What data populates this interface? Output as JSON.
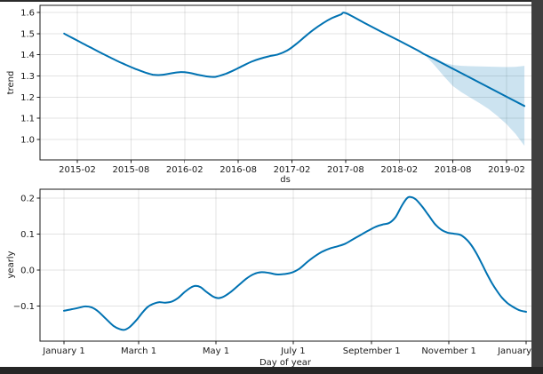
{
  "window": {
    "frame_colors": {
      "top": "#2b2b2b",
      "right": "#3f3f3f",
      "bottom": "#262626"
    },
    "background": "#ffffff"
  },
  "chart_data": [
    {
      "type": "line",
      "title": "",
      "xlabel": "ds",
      "ylabel": "trend",
      "grid": true,
      "line_color": "#0072B2",
      "band_color": "#0072B2",
      "band_opacity": 0.2,
      "grid_color": "#808080",
      "grid_opacity": 0.22,
      "spine_color": "#1a1a1a",
      "x_tick_labels": [
        "2015-02",
        "2015-08",
        "2016-02",
        "2016-08",
        "2017-02",
        "2017-08",
        "2018-02",
        "2018-08",
        "2019-02"
      ],
      "y_tick_labels": [
        "1.0",
        "1.1",
        "1.2",
        "1.3",
        "1.4",
        "1.5",
        "1.6"
      ],
      "ylim": [
        0.9,
        1.64
      ],
      "xlim": [
        "2014-09-28",
        "2019-06-28"
      ],
      "series": [
        {
          "name": "trend",
          "points": [
            [
              "2014-12-17",
              1.5
            ],
            [
              "2015-01-15",
              1.479
            ],
            [
              "2015-02-15",
              1.457
            ],
            [
              "2015-03-15",
              1.435
            ],
            [
              "2015-04-15",
              1.413
            ],
            [
              "2015-05-15",
              1.392
            ],
            [
              "2015-06-15",
              1.371
            ],
            [
              "2015-07-15",
              1.352
            ],
            [
              "2015-08-15",
              1.334
            ],
            [
              "2015-09-15",
              1.318
            ],
            [
              "2015-10-01",
              1.311
            ],
            [
              "2015-10-15",
              1.306
            ],
            [
              "2015-11-01",
              1.304
            ],
            [
              "2015-11-15",
              1.305
            ],
            [
              "2015-12-15",
              1.312
            ],
            [
              "2016-01-15",
              1.318
            ],
            [
              "2016-02-15",
              1.315
            ],
            [
              "2016-03-15",
              1.306
            ],
            [
              "2016-04-15",
              1.298
            ],
            [
              "2016-05-01",
              1.296
            ],
            [
              "2016-05-15",
              1.296
            ],
            [
              "2016-06-15",
              1.308
            ],
            [
              "2016-07-15",
              1.326
            ],
            [
              "2016-08-15",
              1.347
            ],
            [
              "2016-09-15",
              1.367
            ],
            [
              "2016-10-15",
              1.382
            ],
            [
              "2016-11-15",
              1.393
            ],
            [
              "2016-12-15",
              1.402
            ],
            [
              "2017-01-15",
              1.42
            ],
            [
              "2017-02-15",
              1.45
            ],
            [
              "2017-03-15",
              1.486
            ],
            [
              "2017-04-15",
              1.52
            ],
            [
              "2017-05-15",
              1.549
            ],
            [
              "2017-06-15",
              1.573
            ],
            [
              "2017-07-15",
              1.59
            ],
            [
              "2017-08-01",
              1.597
            ],
            [
              "2017-10-01",
              1.553
            ],
            [
              "2017-12-01",
              1.509
            ],
            [
              "2018-02-01",
              1.466
            ],
            [
              "2018-04-01",
              1.422
            ],
            [
              "2018-04-25",
              1.403
            ],
            [
              "2018-06-01",
              1.378
            ],
            [
              "2018-08-01",
              1.334
            ],
            [
              "2018-10-01",
              1.29
            ],
            [
              "2018-12-01",
              1.246
            ],
            [
              "2019-02-01",
              1.202
            ],
            [
              "2019-04-01",
              1.158
            ]
          ]
        }
      ],
      "uncertainty_band": {
        "upper": [
          [
            "2018-04-25",
            1.403
          ],
          [
            "2018-06-01",
            1.385
          ],
          [
            "2018-07-01",
            1.363
          ],
          [
            "2018-08-01",
            1.352
          ],
          [
            "2018-09-01",
            1.348
          ],
          [
            "2018-10-01",
            1.346
          ],
          [
            "2018-11-01",
            1.345
          ],
          [
            "2018-12-01",
            1.344
          ],
          [
            "2019-01-01",
            1.343
          ],
          [
            "2019-02-01",
            1.342
          ],
          [
            "2019-03-01",
            1.343
          ],
          [
            "2019-04-01",
            1.348
          ]
        ],
        "lower": [
          [
            "2018-04-25",
            1.403
          ],
          [
            "2018-06-01",
            1.348
          ],
          [
            "2018-07-01",
            1.298
          ],
          [
            "2018-08-01",
            1.252
          ],
          [
            "2018-09-01",
            1.222
          ],
          [
            "2018-10-01",
            1.196
          ],
          [
            "2018-11-01",
            1.171
          ],
          [
            "2018-12-01",
            1.144
          ],
          [
            "2019-01-01",
            1.11
          ],
          [
            "2019-02-01",
            1.072
          ],
          [
            "2019-03-01",
            1.026
          ],
          [
            "2019-04-01",
            0.97
          ]
        ]
      }
    },
    {
      "type": "line",
      "title": "",
      "xlabel": "Day of year",
      "ylabel": "yearly",
      "grid": true,
      "line_color": "#0072B2",
      "grid_color": "#808080",
      "grid_opacity": 0.22,
      "spine_color": "#1a1a1a",
      "x_ticks": [
        {
          "label": "January 1",
          "day": 0
        },
        {
          "label": "March 1",
          "day": 59
        },
        {
          "label": "May 1",
          "day": 120
        },
        {
          "label": "July 1",
          "day": 181
        },
        {
          "label": "September 1",
          "day": 243
        },
        {
          "label": "November 1",
          "day": 304
        },
        {
          "label": "January",
          "day": 365
        }
      ],
      "y_tick_labels": [
        "−0.1",
        "0.0",
        "0.1",
        "0.2"
      ],
      "ylim": [
        -0.197,
        0.225
      ],
      "xlim": [
        -18,
        368
      ],
      "series": [
        {
          "name": "yearly",
          "points": [
            [
              0,
              -0.113
            ],
            [
              6,
              -0.109
            ],
            [
              12,
              -0.1045
            ],
            [
              17,
              -0.101
            ],
            [
              22,
              -0.104
            ],
            [
              27,
              -0.115
            ],
            [
              33,
              -0.135
            ],
            [
              39,
              -0.155
            ],
            [
              44,
              -0.164
            ],
            [
              48,
              -0.166
            ],
            [
              52,
              -0.158
            ],
            [
              57,
              -0.14
            ],
            [
              62,
              -0.118
            ],
            [
              66,
              -0.103
            ],
            [
              70,
              -0.0945
            ],
            [
              75,
              -0.0895
            ],
            [
              80,
              -0.0905
            ],
            [
              85,
              -0.088
            ],
            [
              90,
              -0.078
            ],
            [
              95,
              -0.062
            ],
            [
              100,
              -0.049
            ],
            [
              104,
              -0.044
            ],
            [
              108,
              -0.048
            ],
            [
              113,
              -0.062
            ],
            [
              118,
              -0.074
            ],
            [
              122,
              -0.078
            ],
            [
              126,
              -0.074
            ],
            [
              132,
              -0.06
            ],
            [
              138,
              -0.042
            ],
            [
              144,
              -0.024
            ],
            [
              150,
              -0.011
            ],
            [
              156,
              -0.006
            ],
            [
              162,
              -0.008
            ],
            [
              168,
              -0.012
            ],
            [
              174,
              -0.011
            ],
            [
              180,
              -0.007
            ],
            [
              186,
              0.004
            ],
            [
              192,
              0.022
            ],
            [
              198,
              0.038
            ],
            [
              204,
              0.051
            ],
            [
              210,
              0.06
            ],
            [
              216,
              0.066
            ],
            [
              222,
              0.073
            ],
            [
              228,
              0.085
            ],
            [
              234,
              0.097
            ],
            [
              240,
              0.109
            ],
            [
              246,
              0.12
            ],
            [
              252,
              0.127
            ],
            [
              257,
              0.131
            ],
            [
              262,
              0.148
            ],
            [
              267,
              0.18
            ],
            [
              271,
              0.2
            ],
            [
              274,
              0.203
            ],
            [
              278,
              0.196
            ],
            [
              283,
              0.176
            ],
            [
              288,
              0.152
            ],
            [
              293,
              0.128
            ],
            [
              298,
              0.112
            ],
            [
              303,
              0.104
            ],
            [
              308,
              0.101
            ],
            [
              313,
              0.098
            ],
            [
              318,
              0.085
            ],
            [
              322,
              0.068
            ],
            [
              326,
              0.045
            ],
            [
              330,
              0.018
            ],
            [
              334,
              -0.01
            ],
            [
              338,
              -0.036
            ],
            [
              342,
              -0.058
            ],
            [
              346,
              -0.077
            ],
            [
              350,
              -0.091
            ],
            [
              354,
              -0.101
            ],
            [
              358,
              -0.109
            ],
            [
              361,
              -0.113
            ],
            [
              365,
              -0.116
            ]
          ]
        }
      ]
    }
  ]
}
